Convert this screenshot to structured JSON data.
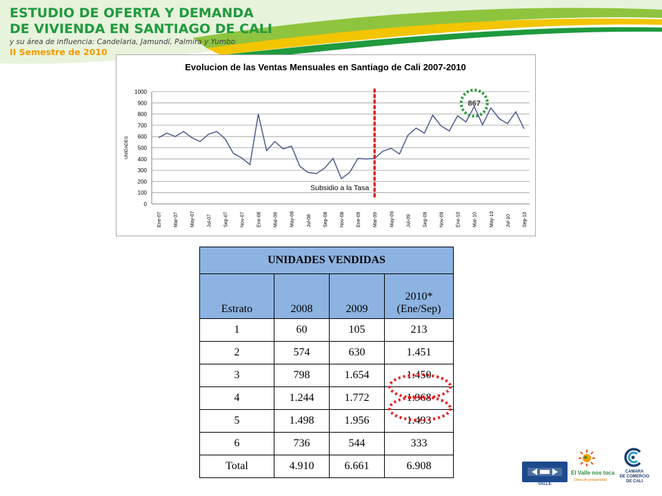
{
  "header": {
    "title_line1": "ESTUDIO DE OFERTA Y DEMANDA",
    "title_line2": "DE VIVIENDA EN SANTIAGO DE CALI",
    "subtitle": "y su área de influencia: Candelaria, Jamundí, Palmira y Yumbo",
    "semester": "II Semestre de 2010"
  },
  "chart_data": {
    "type": "line",
    "title": "Evolucion de las Ventas Mensuales en Santiago de Cali 2007-2010",
    "ylabel": "UNIDADES",
    "ylim": [
      0,
      1000
    ],
    "yticks": [
      0,
      100,
      200,
      300,
      400,
      500,
      600,
      700,
      800,
      900,
      1000
    ],
    "grid": true,
    "x_labels": [
      "Ene-07",
      "Mar-07",
      "May-07",
      "Jul-07",
      "Sep-07",
      "Nov-07",
      "Ene-08",
      "Mar-08",
      "May-08",
      "Jul-08",
      "Sep-08",
      "Nov-08",
      "Ene-09",
      "Mar-09",
      "May-09",
      "Jul-09",
      "Sep-09",
      "Nov-09",
      "Ene-10",
      "Mar-10",
      "May-10",
      "Jul-10",
      "Sep-10"
    ],
    "series": [
      {
        "color": "#4a5a8e",
        "values": [
          590,
          630,
          600,
          645,
          590,
          555,
          620,
          645,
          580,
          450,
          410,
          350,
          800,
          475,
          555,
          490,
          515,
          335,
          280,
          270,
          320,
          405,
          225,
          280,
          405,
          400,
          405,
          470,
          495,
          445,
          610,
          675,
          630,
          790,
          695,
          650,
          785,
          730,
          867,
          705,
          855,
          760,
          715,
          820,
          670
        ]
      }
    ],
    "annotations": [
      {
        "text": "867",
        "at_index": 38,
        "value": 867,
        "marker": "green-dotted-circle"
      },
      {
        "text": "Subsidio a la Tasa",
        "at_index": 26,
        "marker": "red-dotted-vertical-line"
      }
    ]
  },
  "table": {
    "title": "UNIDADES VENDIDAS",
    "headers": [
      "Estrato",
      "2008",
      "2009",
      "2010*\n(Ene/Sep)"
    ],
    "rows": [
      [
        "1",
        "60",
        "105",
        "213"
      ],
      [
        "2",
        "574",
        "630",
        "1.451"
      ],
      [
        "3",
        "798",
        "1.654",
        "1.450"
      ],
      [
        "4",
        "1.244",
        "1.772",
        "1.968"
      ],
      [
        "5",
        "1.498",
        "1.956",
        "1.493"
      ],
      [
        "6",
        "736",
        "544",
        "333"
      ],
      [
        "Total",
        "4.910",
        "6.661",
        "6.908"
      ]
    ],
    "highlight_color": "#e02020"
  },
  "logos": {
    "camacol_sub": "VALLE",
    "valle_text": "El Valle nos toca",
    "valle_sub": "Clima de prosperidad",
    "ccc_lines": [
      "CAMARA",
      "DE COMERCIO",
      "DE CALI"
    ]
  },
  "colors": {
    "brand_green": "#1f9a3e",
    "brand_yellow": "#f2c500",
    "brand_orange": "#f29b00",
    "table_header_blue": "#8db3e2",
    "line_color": "#4a5a8e"
  }
}
